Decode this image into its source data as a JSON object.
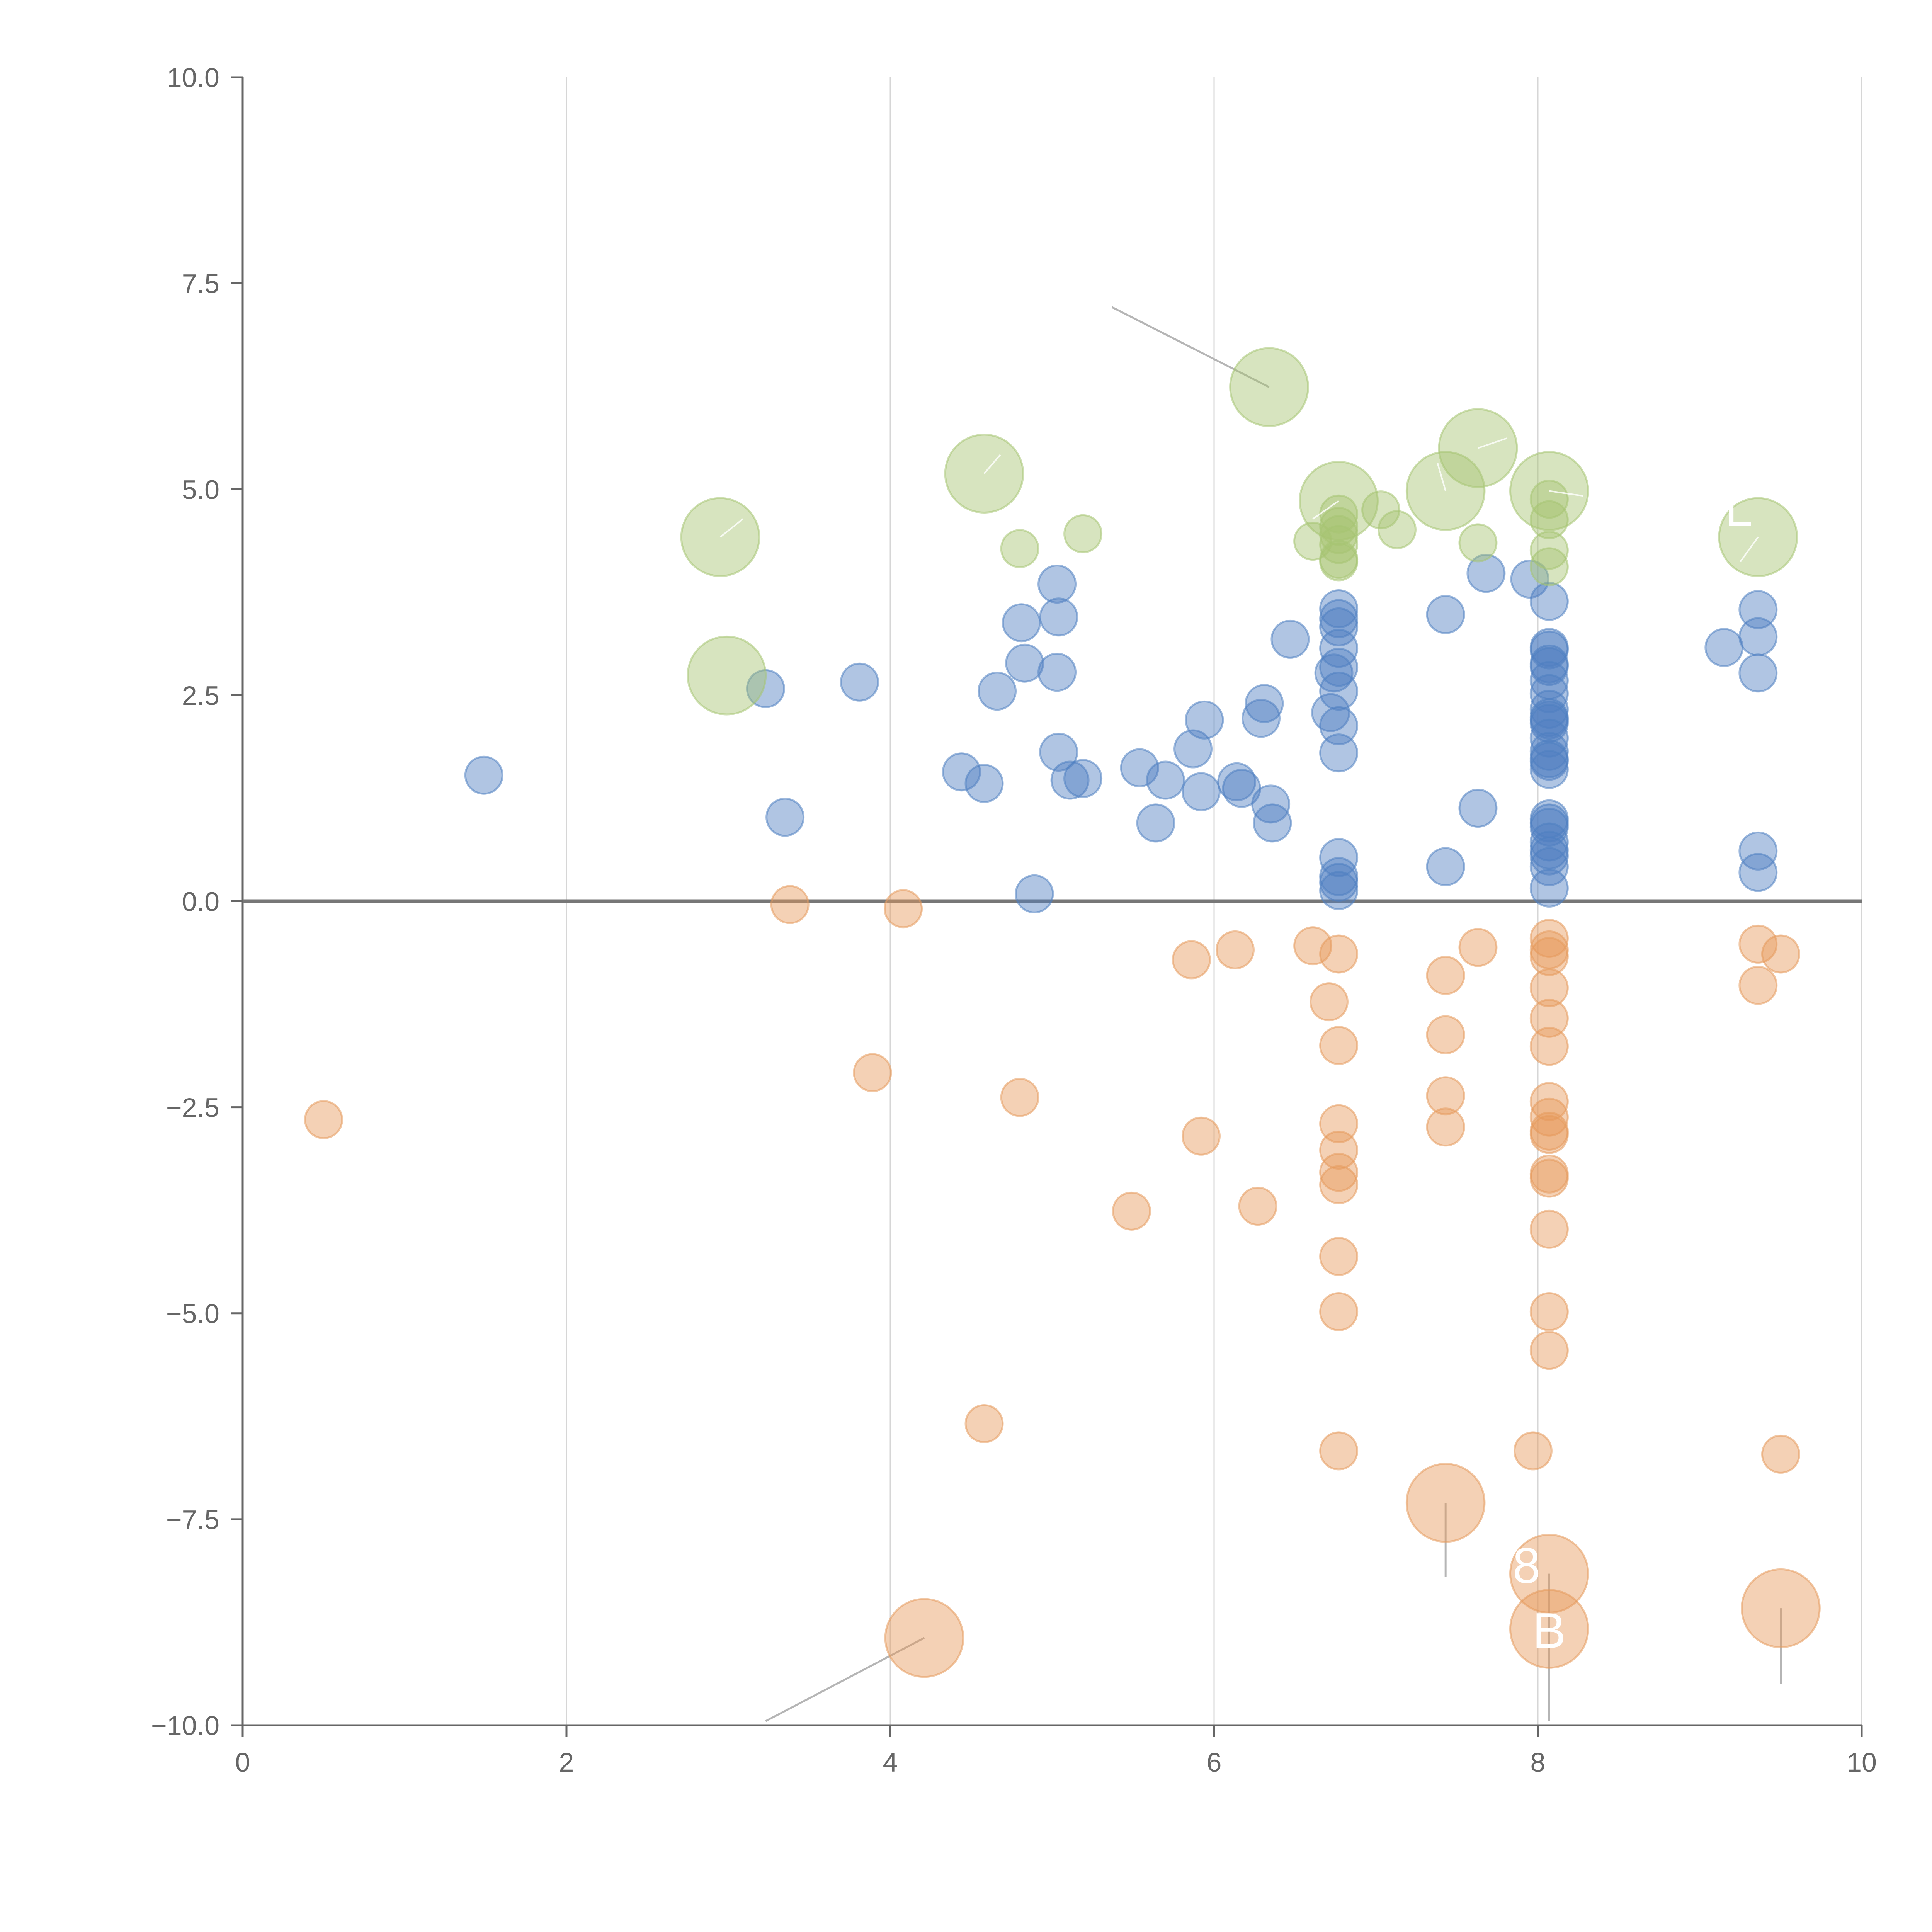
{
  "chart_data": {
    "type": "scatter",
    "variant": "bubble",
    "xlim": [
      0,
      10
    ],
    "ylim": [
      -10,
      10
    ],
    "x_ticks": [
      0,
      2,
      4,
      6,
      8,
      10
    ],
    "y_ticks": [
      -10,
      -7.5,
      -5,
      -2.5,
      0,
      2.5,
      5,
      7.5,
      10
    ],
    "x_tick_labels": [
      "0",
      "2",
      "4",
      "6",
      "8",
      "10"
    ],
    "y_tick_labels": [
      "−10.0",
      "−7.5",
      "−5.0",
      "−2.5",
      "0.0",
      "2.5",
      "5.0",
      "7.5",
      "10.0"
    ],
    "grid": {
      "vertical": true,
      "horizontal": false
    },
    "zero_line": true,
    "legend": "none",
    "series": [
      {
        "name": "blue",
        "color": "#4f7fc1",
        "points": [
          [
            1.49,
            1.53,
            1
          ],
          [
            3.23,
            2.58,
            1
          ],
          [
            3.35,
            1.02,
            1
          ],
          [
            3.81,
            2.66,
            1
          ],
          [
            4.44,
            1.57,
            1
          ],
          [
            4.58,
            1.43,
            1
          ],
          [
            4.66,
            2.55,
            1
          ],
          [
            4.81,
            3.38,
            1
          ],
          [
            4.83,
            2.89,
            1
          ],
          [
            4.89,
            0.09,
            1
          ],
          [
            5.03,
            3.85,
            1
          ],
          [
            5.04,
            3.45,
            1
          ],
          [
            5.03,
            2.78,
            1
          ],
          [
            5.04,
            1.81,
            1
          ],
          [
            5.11,
            1.47,
            1
          ],
          [
            5.19,
            1.49,
            1
          ],
          [
            5.54,
            1.62,
            1
          ],
          [
            5.64,
            0.95,
            1
          ],
          [
            5.7,
            1.47,
            1
          ],
          [
            5.87,
            1.85,
            1
          ],
          [
            5.92,
            1.33,
            1
          ],
          [
            5.94,
            2.2,
            1
          ],
          [
            6.14,
            1.45,
            1
          ],
          [
            6.17,
            1.37,
            1
          ],
          [
            6.29,
            2.22,
            1
          ],
          [
            6.31,
            2.4,
            1
          ],
          [
            6.35,
            1.18,
            1
          ],
          [
            6.36,
            0.95,
            1
          ],
          [
            6.47,
            3.18,
            1
          ],
          [
            6.72,
            2.29,
            1
          ],
          [
            6.74,
            2.77,
            1
          ],
          [
            6.77,
            3.55,
            1
          ],
          [
            6.77,
            3.43,
            1
          ],
          [
            6.77,
            3.33,
            1
          ],
          [
            6.77,
            3.07,
            1
          ],
          [
            6.77,
            2.84,
            1
          ],
          [
            6.77,
            2.55,
            1
          ],
          [
            6.77,
            2.13,
            1
          ],
          [
            6.77,
            1.8,
            1
          ],
          [
            6.77,
            0.53,
            1
          ],
          [
            6.77,
            0.3,
            1
          ],
          [
            6.77,
            0.23,
            1
          ],
          [
            6.77,
            0.13,
            1
          ],
          [
            7.43,
            3.48,
            1
          ],
          [
            7.43,
            0.42,
            1
          ],
          [
            7.63,
            1.13,
            1
          ],
          [
            7.68,
            3.98,
            1
          ],
          [
            7.95,
            3.91,
            1
          ],
          [
            8.07,
            3.64,
            1
          ],
          [
            8.07,
            3.08,
            1
          ],
          [
            8.07,
            3.05,
            1
          ],
          [
            8.07,
            2.88,
            1
          ],
          [
            8.07,
            2.85,
            1
          ],
          [
            8.07,
            2.68,
            1
          ],
          [
            8.07,
            2.52,
            1
          ],
          [
            8.07,
            2.33,
            1
          ],
          [
            8.07,
            2.23,
            1
          ],
          [
            8.07,
            2.2,
            1
          ],
          [
            8.07,
            2.16,
            1
          ],
          [
            8.07,
            1.98,
            1
          ],
          [
            8.07,
            1.82,
            1
          ],
          [
            8.07,
            1.73,
            1
          ],
          [
            8.07,
            1.7,
            1
          ],
          [
            8.07,
            1.6,
            1
          ],
          [
            8.07,
            1.0,
            1
          ],
          [
            8.07,
            0.95,
            1
          ],
          [
            8.07,
            0.9,
            1
          ],
          [
            8.07,
            0.72,
            1
          ],
          [
            8.07,
            0.62,
            1
          ],
          [
            8.07,
            0.55,
            1
          ],
          [
            8.07,
            0.42,
            1
          ],
          [
            8.07,
            0.16,
            1
          ],
          [
            9.15,
            3.08,
            1
          ],
          [
            9.36,
            3.54,
            1
          ],
          [
            9.36,
            3.21,
            1
          ],
          [
            9.36,
            2.77,
            1
          ],
          [
            9.36,
            0.61,
            1
          ],
          [
            9.36,
            0.35,
            1
          ]
        ]
      },
      {
        "name": "orange",
        "color": "#e69a5c",
        "points": [
          [
            0.5,
            -2.65,
            1
          ],
          [
            3.38,
            -0.04,
            1
          ],
          [
            3.89,
            -2.08,
            1
          ],
          [
            4.08,
            -0.09,
            1
          ],
          [
            4.58,
            -6.34,
            1
          ],
          [
            4.21,
            -8.94,
            2.1
          ],
          [
            4.8,
            -2.38,
            1
          ],
          [
            5.49,
            -3.76,
            1
          ],
          [
            5.86,
            -0.71,
            1
          ],
          [
            5.92,
            -2.85,
            1
          ],
          [
            6.13,
            -0.59,
            1
          ],
          [
            6.27,
            -3.7,
            1
          ],
          [
            6.61,
            -0.54,
            1
          ],
          [
            6.71,
            -1.22,
            1
          ],
          [
            6.77,
            -0.64,
            1
          ],
          [
            6.77,
            -1.75,
            1
          ],
          [
            6.77,
            -2.7,
            1
          ],
          [
            6.77,
            -3.02,
            1
          ],
          [
            6.77,
            -3.29,
            1
          ],
          [
            6.77,
            -3.44,
            1
          ],
          [
            6.77,
            -4.31,
            1
          ],
          [
            6.77,
            -4.98,
            1
          ],
          [
            6.77,
            -6.67,
            1
          ],
          [
            7.43,
            -0.9,
            1
          ],
          [
            7.43,
            -1.62,
            1
          ],
          [
            7.43,
            -2.36,
            1
          ],
          [
            7.43,
            -2.74,
            1
          ],
          [
            7.43,
            -7.3,
            2.1
          ],
          [
            7.63,
            -0.56,
            1
          ],
          [
            7.97,
            -6.67,
            1
          ],
          [
            8.07,
            -0.45,
            1
          ],
          [
            8.07,
            -0.59,
            1
          ],
          [
            8.07,
            -0.67,
            1
          ],
          [
            8.07,
            -1.05,
            1
          ],
          [
            8.07,
            -1.42,
            1
          ],
          [
            8.07,
            -1.76,
            1
          ],
          [
            8.07,
            -2.43,
            1
          ],
          [
            8.07,
            -2.62,
            1
          ],
          [
            8.07,
            -2.79,
            1
          ],
          [
            8.07,
            -2.83,
            1
          ],
          [
            8.07,
            -3.31,
            1
          ],
          [
            8.07,
            -3.36,
            1
          ],
          [
            8.07,
            -3.98,
            1
          ],
          [
            8.07,
            -4.98,
            1
          ],
          [
            8.07,
            -5.45,
            1
          ],
          [
            8.07,
            -8.16,
            2.1
          ],
          [
            8.07,
            -8.83,
            2.1
          ],
          [
            9.36,
            -0.52,
            1
          ],
          [
            9.36,
            -1.02,
            1
          ],
          [
            9.5,
            -0.64,
            1
          ],
          [
            9.5,
            -6.71,
            1
          ],
          [
            9.5,
            -8.58,
            2.1
          ]
        ]
      },
      {
        "name": "green",
        "color": "#a6c472",
        "points": [
          [
            2.95,
            4.42,
            2.1
          ],
          [
            2.99,
            2.74,
            2.1
          ],
          [
            4.58,
            5.19,
            2.1
          ],
          [
            4.8,
            4.28,
            1
          ],
          [
            5.19,
            4.46,
            1
          ],
          [
            6.34,
            6.24,
            2.1
          ],
          [
            6.61,
            4.37,
            1
          ],
          [
            6.77,
            4.86,
            2.1
          ],
          [
            6.77,
            4.7,
            1
          ],
          [
            6.77,
            4.55,
            1
          ],
          [
            6.77,
            4.45,
            1
          ],
          [
            6.77,
            4.33,
            1
          ],
          [
            6.77,
            4.15,
            1
          ],
          [
            6.77,
            4.12,
            1
          ],
          [
            7.03,
            4.75,
            1
          ],
          [
            7.13,
            4.51,
            1
          ],
          [
            7.43,
            4.98,
            2.1
          ],
          [
            7.63,
            5.5,
            2.1
          ],
          [
            7.63,
            4.35,
            1
          ],
          [
            8.07,
            4.98,
            2.1
          ],
          [
            8.07,
            4.88,
            1
          ],
          [
            8.07,
            4.63,
            1
          ],
          [
            8.07,
            4.26,
            1
          ],
          [
            8.07,
            4.06,
            1
          ],
          [
            9.36,
            4.42,
            2.1
          ]
        ]
      }
    ],
    "labels": [
      {
        "text": "8",
        "x": 7.93,
        "y": -8.06
      },
      {
        "text": "B",
        "x": 8.07,
        "y": -8.85
      },
      {
        "text": "L",
        "x": 9.24,
        "y": 4.77
      }
    ],
    "leader_lines": [
      [
        6.34,
        6.24,
        5.37,
        7.21
      ],
      [
        4.21,
        -8.94,
        3.23,
        -9.95
      ],
      [
        7.43,
        -7.3,
        7.43,
        -8.2
      ],
      [
        8.07,
        -8.16,
        8.07,
        -9.95
      ],
      [
        9.5,
        -8.58,
        9.5,
        -9.5
      ]
    ],
    "inner_lines": [
      [
        2.95,
        4.42,
        3.09,
        4.64
      ],
      [
        4.58,
        5.19,
        4.68,
        5.42
      ],
      [
        7.43,
        4.98,
        7.38,
        5.32
      ],
      [
        7.63,
        5.5,
        7.81,
        5.62
      ],
      [
        8.07,
        4.98,
        8.28,
        4.92
      ],
      [
        9.36,
        4.42,
        9.25,
        4.12
      ],
      [
        6.77,
        4.86,
        6.61,
        4.64
      ]
    ]
  }
}
